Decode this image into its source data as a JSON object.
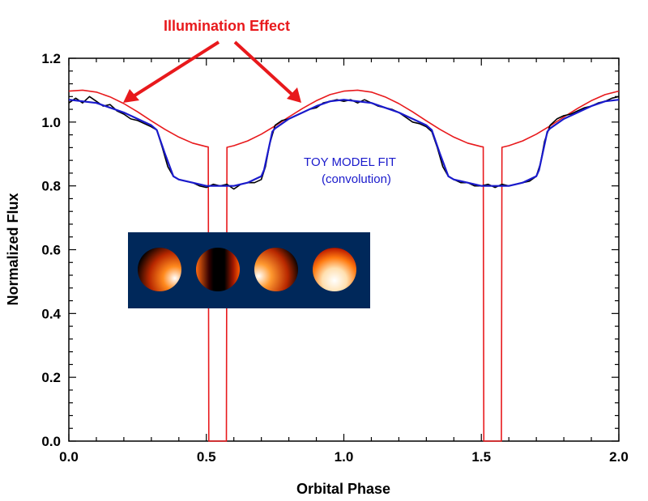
{
  "chart_data": {
    "type": "line",
    "title": "",
    "xlabel": "Orbital Phase",
    "ylabel": "Normalized Flux",
    "xlim": [
      0,
      2.0
    ],
    "ylim": [
      0,
      1.2
    ],
    "xticks": [
      "0.0",
      "0.5",
      "1.0",
      "1.5",
      "2.0"
    ],
    "yticks": [
      "0.0",
      "0.2",
      "0.4",
      "0.6",
      "0.8",
      "1.0",
      "1.2"
    ],
    "grid": false,
    "annotations": {
      "illumination": "Illumination Effect",
      "fit_line1": "TOY MODEL FIT",
      "fit_line2": "(convolution)"
    },
    "colors": {
      "model": "#e8191c",
      "fit": "#1a1acc",
      "data": "#000000",
      "annotation": "#e8191c",
      "inset_bg": "#00285a"
    },
    "inset": "four rendered planet/star disks in orange-black heat colormap on navy background",
    "series": [
      {
        "role": "model",
        "color": "#e8191c",
        "points": [
          [
            0,
            1.097
          ],
          [
            0.05,
            1.1
          ],
          [
            0.1,
            1.094
          ],
          [
            0.15,
            1.079
          ],
          [
            0.2,
            1.058
          ],
          [
            0.25,
            1.032
          ],
          [
            0.3,
            1.004
          ],
          [
            0.35,
            0.977
          ],
          [
            0.4,
            0.953
          ],
          [
            0.45,
            0.934
          ],
          [
            0.5,
            0.923
          ],
          [
            0.507,
            0.922
          ],
          [
            0.509,
            0.0
          ],
          [
            0.573,
            0.0
          ],
          [
            0.575,
            0.921
          ],
          [
            0.6,
            0.926
          ],
          [
            0.65,
            0.941
          ],
          [
            0.7,
            0.962
          ],
          [
            0.75,
            0.988
          ],
          [
            0.8,
            1.016
          ],
          [
            0.85,
            1.043
          ],
          [
            0.9,
            1.067
          ],
          [
            0.95,
            1.086
          ],
          [
            1.0,
            1.097
          ],
          [
            1.05,
            1.1
          ],
          [
            1.1,
            1.094
          ],
          [
            1.15,
            1.079
          ],
          [
            1.2,
            1.058
          ],
          [
            1.25,
            1.032
          ],
          [
            1.3,
            1.004
          ],
          [
            1.35,
            0.977
          ],
          [
            1.4,
            0.953
          ],
          [
            1.45,
            0.934
          ],
          [
            1.5,
            0.923
          ],
          [
            1.507,
            0.922
          ],
          [
            1.509,
            0.0
          ],
          [
            1.573,
            0.0
          ],
          [
            1.575,
            0.921
          ],
          [
            1.6,
            0.926
          ],
          [
            1.65,
            0.941
          ],
          [
            1.7,
            0.962
          ],
          [
            1.75,
            0.988
          ],
          [
            1.8,
            1.016
          ],
          [
            1.85,
            1.043
          ],
          [
            1.9,
            1.067
          ],
          [
            1.95,
            1.086
          ],
          [
            2.0,
            1.097
          ]
        ]
      },
      {
        "role": "data",
        "color": "#000000",
        "points": [
          [
            0,
            1.06
          ],
          [
            0.025,
            1.075
          ],
          [
            0.05,
            1.06
          ],
          [
            0.075,
            1.08
          ],
          [
            0.1,
            1.065
          ],
          [
            0.125,
            1.05
          ],
          [
            0.15,
            1.055
          ],
          [
            0.175,
            1.035
          ],
          [
            0.2,
            1.025
          ],
          [
            0.225,
            1.01
          ],
          [
            0.25,
            1.005
          ],
          [
            0.275,
            0.995
          ],
          [
            0.3,
            0.985
          ],
          [
            0.32,
            0.975
          ],
          [
            0.34,
            0.92
          ],
          [
            0.36,
            0.86
          ],
          [
            0.38,
            0.83
          ],
          [
            0.4,
            0.82
          ],
          [
            0.425,
            0.815
          ],
          [
            0.45,
            0.81
          ],
          [
            0.475,
            0.8
          ],
          [
            0.5,
            0.795
          ],
          [
            0.525,
            0.805
          ],
          [
            0.55,
            0.8
          ],
          [
            0.575,
            0.805
          ],
          [
            0.6,
            0.79
          ],
          [
            0.625,
            0.805
          ],
          [
            0.65,
            0.81
          ],
          [
            0.675,
            0.81
          ],
          [
            0.7,
            0.82
          ],
          [
            0.715,
            0.86
          ],
          [
            0.73,
            0.93
          ],
          [
            0.75,
            0.99
          ],
          [
            0.775,
            1.005
          ],
          [
            0.8,
            1.01
          ],
          [
            0.825,
            1.02
          ],
          [
            0.85,
            1.03
          ],
          [
            0.875,
            1.04
          ],
          [
            0.9,
            1.045
          ],
          [
            0.925,
            1.06
          ],
          [
            0.95,
            1.065
          ],
          [
            0.975,
            1.07
          ],
          [
            1.0,
            1.065
          ],
          [
            1.025,
            1.07
          ],
          [
            1.05,
            1.06
          ],
          [
            1.075,
            1.07
          ],
          [
            1.1,
            1.06
          ],
          [
            1.125,
            1.05
          ],
          [
            1.15,
            1.045
          ],
          [
            1.175,
            1.04
          ],
          [
            1.2,
            1.03
          ],
          [
            1.225,
            1.015
          ],
          [
            1.25,
            1.0
          ],
          [
            1.275,
            0.995
          ],
          [
            1.3,
            0.985
          ],
          [
            1.32,
            0.97
          ],
          [
            1.34,
            0.92
          ],
          [
            1.36,
            0.86
          ],
          [
            1.38,
            0.83
          ],
          [
            1.4,
            0.82
          ],
          [
            1.425,
            0.81
          ],
          [
            1.45,
            0.81
          ],
          [
            1.475,
            0.8
          ],
          [
            1.5,
            0.8
          ],
          [
            1.525,
            0.805
          ],
          [
            1.55,
            0.795
          ],
          [
            1.575,
            0.805
          ],
          [
            1.6,
            0.8
          ],
          [
            1.625,
            0.805
          ],
          [
            1.65,
            0.81
          ],
          [
            1.675,
            0.815
          ],
          [
            1.7,
            0.83
          ],
          [
            1.715,
            0.87
          ],
          [
            1.73,
            0.94
          ],
          [
            1.75,
            0.99
          ],
          [
            1.775,
            1.01
          ],
          [
            1.8,
            1.02
          ],
          [
            1.825,
            1.025
          ],
          [
            1.85,
            1.035
          ],
          [
            1.875,
            1.045
          ],
          [
            1.9,
            1.05
          ],
          [
            1.925,
            1.06
          ],
          [
            1.95,
            1.065
          ],
          [
            1.975,
            1.075
          ],
          [
            2.0,
            1.08
          ]
        ]
      },
      {
        "role": "fit",
        "color": "#1a1acc",
        "points": [
          [
            0,
            1.07
          ],
          [
            0.05,
            1.065
          ],
          [
            0.1,
            1.06
          ],
          [
            0.15,
            1.045
          ],
          [
            0.2,
            1.03
          ],
          [
            0.25,
            1.01
          ],
          [
            0.3,
            0.99
          ],
          [
            0.32,
            0.975
          ],
          [
            0.35,
            0.9
          ],
          [
            0.38,
            0.83
          ],
          [
            0.4,
            0.82
          ],
          [
            0.45,
            0.81
          ],
          [
            0.5,
            0.8
          ],
          [
            0.55,
            0.8
          ],
          [
            0.6,
            0.8
          ],
          [
            0.65,
            0.81
          ],
          [
            0.7,
            0.83
          ],
          [
            0.71,
            0.85
          ],
          [
            0.74,
            0.97
          ],
          [
            0.75,
            0.98
          ],
          [
            0.8,
            1.01
          ],
          [
            0.85,
            1.03
          ],
          [
            0.9,
            1.05
          ],
          [
            0.95,
            1.065
          ],
          [
            1.0,
            1.07
          ],
          [
            1.05,
            1.065
          ],
          [
            1.1,
            1.06
          ],
          [
            1.15,
            1.045
          ],
          [
            1.2,
            1.03
          ],
          [
            1.25,
            1.01
          ],
          [
            1.3,
            0.99
          ],
          [
            1.32,
            0.975
          ],
          [
            1.35,
            0.9
          ],
          [
            1.38,
            0.83
          ],
          [
            1.4,
            0.82
          ],
          [
            1.45,
            0.81
          ],
          [
            1.5,
            0.8
          ],
          [
            1.55,
            0.8
          ],
          [
            1.6,
            0.8
          ],
          [
            1.65,
            0.81
          ],
          [
            1.7,
            0.83
          ],
          [
            1.71,
            0.85
          ],
          [
            1.74,
            0.97
          ],
          [
            1.75,
            0.98
          ],
          [
            1.8,
            1.01
          ],
          [
            1.85,
            1.03
          ],
          [
            1.9,
            1.05
          ],
          [
            1.95,
            1.065
          ],
          [
            2.0,
            1.07
          ]
        ]
      }
    ]
  }
}
